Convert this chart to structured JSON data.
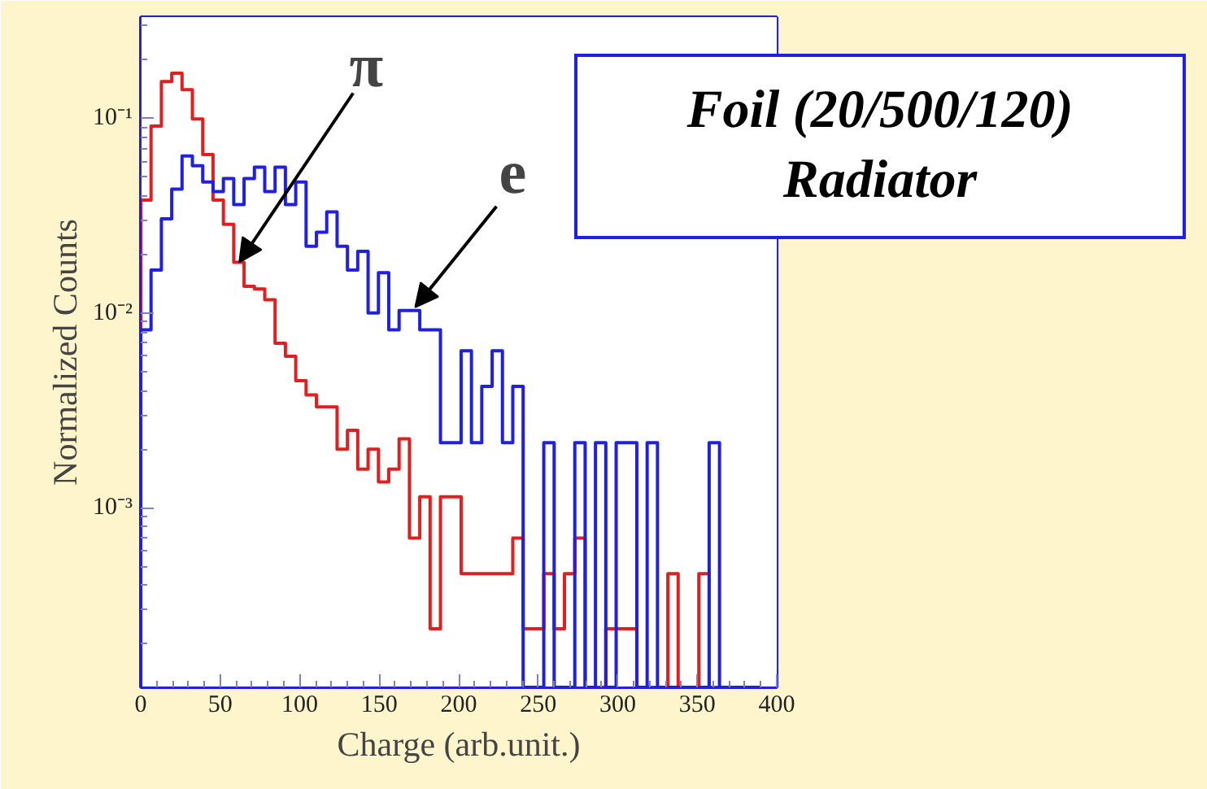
{
  "chart_data": {
    "type": "histogram",
    "xlabel": "Charge (arb.unit.)",
    "ylabel": "Normalized Counts",
    "bins": [
      0,
      6.5,
      13,
      19.5,
      26,
      32.5,
      39,
      45.5,
      52,
      58.5,
      65,
      71.5,
      78,
      84.5,
      91,
      97.5,
      104,
      110.5,
      117,
      123.5,
      130,
      136.5,
      143,
      149.5,
      156,
      162.5,
      169,
      175.5,
      182,
      188.5,
      195,
      201.5,
      208,
      214.5,
      221,
      227.5,
      234,
      240.5,
      247,
      253.5,
      260,
      266.5,
      273,
      279.5,
      286,
      292.5,
      299,
      305.5,
      312,
      318.5,
      325,
      331.5,
      338,
      344.5,
      351,
      357.5,
      364,
      370.5,
      377,
      383.5,
      390
    ],
    "series": [
      {
        "color": "#e02020",
        "values": [
          0.038,
          0.091,
          0.154,
          0.17,
          0.14,
          0.099,
          0.065,
          0.038,
          0.0285,
          0.0182,
          0.0137,
          0.0133,
          0.0117,
          0.007,
          0.006,
          0.0045,
          0.0038,
          0.0033,
          0.0033,
          0.002,
          0.0025,
          0.00158,
          0.002,
          0.00136,
          0.00158,
          0.00226,
          0.0007,
          0.00114,
          0.00024,
          0.00114,
          0.00114,
          0.00046,
          0.00046,
          0.00046,
          0.00046,
          0.00046,
          0.0007,
          0.00024,
          0.00024,
          0.00046,
          0.00024,
          0.00046,
          0.0007,
          null,
          null,
          0.00024,
          0.00024,
          0.00024,
          null,
          null,
          null,
          0.00046,
          null,
          null,
          0.00046,
          null,
          null,
          null,
          null,
          null
        ]
      },
      {
        "color": "#2020e0",
        "values": [
          0.0082,
          0.0166,
          0.0304,
          0.0432,
          0.064,
          0.057,
          0.047,
          0.042,
          0.049,
          0.036,
          0.049,
          0.056,
          0.042,
          0.056,
          0.036,
          0.047,
          0.022,
          0.026,
          0.033,
          0.022,
          0.0166,
          0.0207,
          0.01,
          0.0161,
          0.0082,
          0.0103,
          0.0103,
          0.0082,
          0.0082,
          0.00216,
          0.00216,
          0.0064,
          0.00216,
          0.0042,
          0.0064,
          0.00216,
          0.0042,
          null,
          null,
          0.00216,
          null,
          null,
          0.00216,
          null,
          0.00216,
          null,
          0.00216,
          0.00216,
          null,
          0.00216,
          null,
          null,
          null,
          null,
          null,
          0.00216,
          null,
          null,
          null,
          null
        ]
      }
    ],
    "log": "y",
    "xlim": [
      0,
      400
    ],
    "ylim": [
      0.00012,
      0.33
    ],
    "xticks": [
      0,
      50,
      100,
      150,
      200,
      250,
      300,
      350,
      400
    ],
    "yticks": [
      {
        "value": 0.001,
        "label": "10⁻³"
      },
      {
        "value": 0.01,
        "label": "10⁻²"
      },
      {
        "value": 0.1,
        "label": "10⁻¹"
      }
    ],
    "annotations": [
      {
        "text": "π",
        "x": 62,
        "y": 0.0182
      },
      {
        "text": "e",
        "x": 172.6,
        "y": 0.0107
      },
      "Foil (20/500/120)",
      "Radiator"
    ]
  }
}
